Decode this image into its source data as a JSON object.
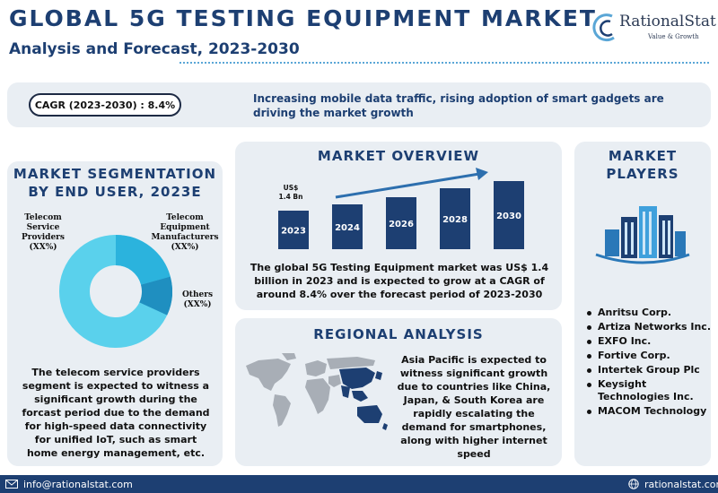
{
  "header": {
    "title": "GLOBAL 5G TESTING EQUIPMENT MARKET",
    "subtitle": "Analysis and Forecast, 2023-2030"
  },
  "logo": {
    "name": "RationalStat",
    "tagline": "Value & Growth",
    "icon": "rationalstat-logo-icon"
  },
  "banner": {
    "cagr": "CAGR (2023-2030) : 8.4%",
    "text": "Increasing mobile data traffic, rising adoption of smart gadgets are driving the market growth"
  },
  "segmentation": {
    "title_line1": "MARKET SEGMENTATION",
    "title_line2": "BY END USER, 2023E",
    "labels": {
      "telecom": "Telecom Service Providers (XX%)",
      "equipment": "Telecom Equipment Manufacturers (XX%)",
      "others": "Others (XX%)"
    },
    "colors": {
      "telecom": "#5ad1ec",
      "equipment": "#2bb3dd",
      "others": "#1f8fc0"
    },
    "description": "The telecom service providers segment is expected to witness a significant growth during the forcast period due to the demand for high-speed data connectivity for unified IoT, such as smart home energy management, etc."
  },
  "overview": {
    "title": "MARKET OVERVIEW",
    "value_label_line1": "US$",
    "value_label_line2": "1.4 Bn",
    "years": [
      "2023",
      "2024",
      "2026",
      "2028",
      "2030"
    ],
    "bar_color": "#1d3f72",
    "arrow_color": "#2d6fae",
    "description": "The global 5G Testing Equipment market was US$ 1.4 billion in 2023 and is expected to grow at a CAGR of around 8.4% over the forecast period of 2023-2030"
  },
  "regional": {
    "title": "REGIONAL ANALYSIS",
    "map_icon": "world-map-icon",
    "highlight_color": "#1d3f72",
    "description": "Asia Pacific is expected to witness significant growth due to countries like China, Japan, & South Korea are rapidly escalating the demand for smartphones, along with higher internet speed"
  },
  "players": {
    "title_line1": "MARKET",
    "title_line2": "PLAYERS",
    "icon": "city-buildings-icon",
    "list": [
      "Anritsu Corp.",
      "Artiza Networks Inc.",
      "EXFO Inc.",
      "Fortive Corp.",
      "Intertek Group Plc",
      "Keysight Technologies Inc.",
      "MACOM Technology"
    ]
  },
  "footer": {
    "email": "info@rationalstat.com",
    "website": "rationalstat.com",
    "email_icon": "email-icon",
    "web_icon": "globe-icon"
  },
  "colors": {
    "primary": "#1d3f72",
    "panel": "#e9eef3",
    "accent": "#5aa6d6"
  }
}
